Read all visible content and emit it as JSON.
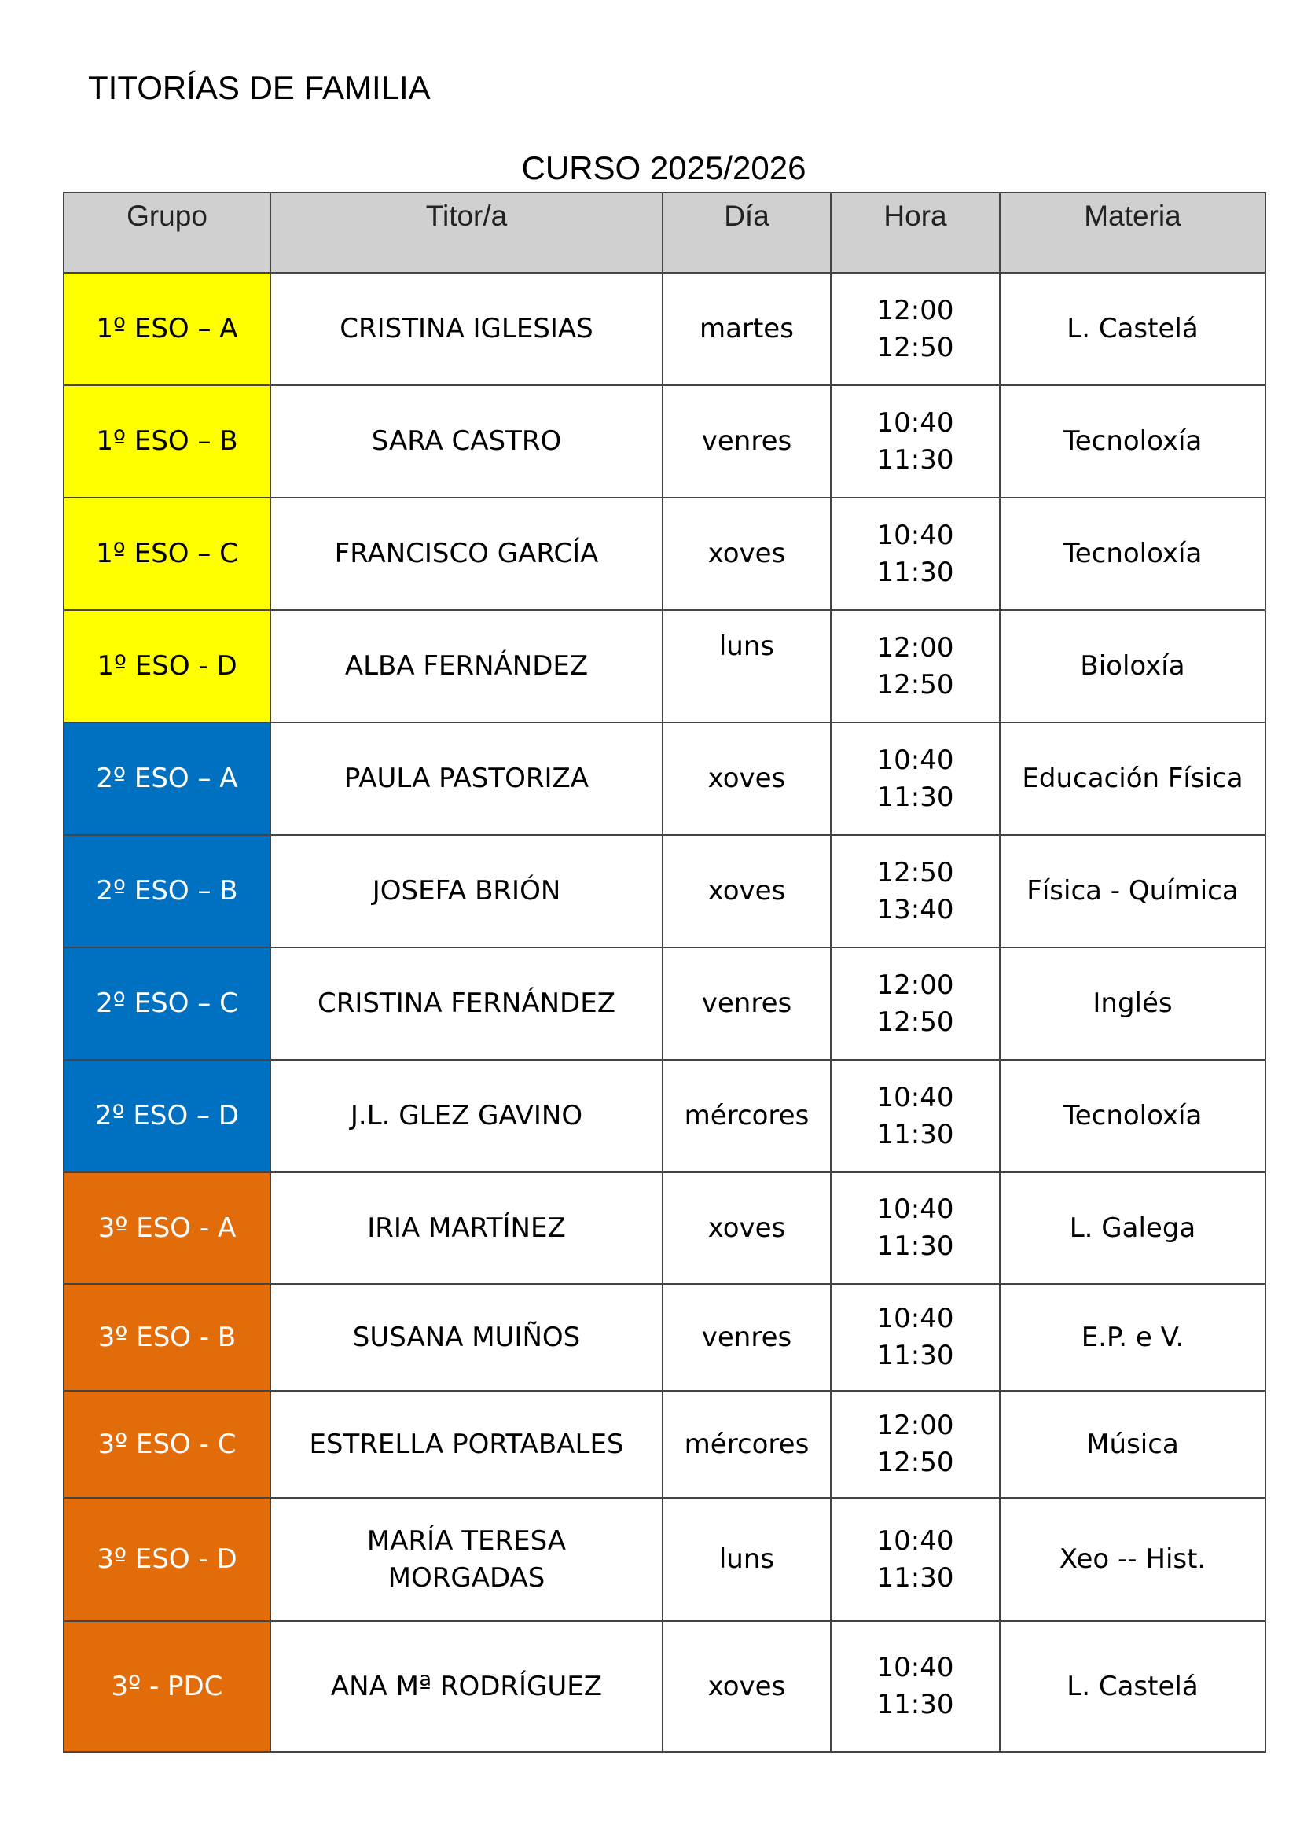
{
  "title": "TITORÍAS DE FAMILIA",
  "subtitle": "CURSO 2025/2026",
  "colors": {
    "header": "#d0d0d0",
    "primeiro": "#ffff00",
    "segundo": "#0070c0",
    "terceiro": "#e36c0a"
  },
  "headers": [
    "Grupo",
    "Titor/a",
    "Día",
    "Hora",
    "Materia"
  ],
  "rows": [
    {
      "grupo": "1º ESO – A",
      "titor": "CRISTINA IGLESIAS",
      "dia": "martes",
      "hora_inicio": "12:00",
      "hora_fin": "12:50",
      "materia": "L. Castelá"
    },
    {
      "grupo": "1º ESO – B",
      "titor": "SARA CASTRO",
      "dia": "venres",
      "hora_inicio": "10:40",
      "hora_fin": "11:30",
      "materia": "Tecnoloxía"
    },
    {
      "grupo": "1º ESO – C",
      "titor": "FRANCISCO GARCÍA",
      "dia": "xoves",
      "hora_inicio": "10:40",
      "hora_fin": "11:30",
      "materia": "Tecnoloxía"
    },
    {
      "grupo": "1º ESO - D",
      "titor": "ALBA FERNÁNDEZ",
      "dia": "luns",
      "hora_inicio": "12:00",
      "hora_fin": "12:50",
      "materia": "Bioloxía"
    },
    {
      "grupo": "2º ESO – A",
      "titor": "PAULA PASTORIZA",
      "dia": "xoves",
      "hora_inicio": "10:40",
      "hora_fin": "11:30",
      "materia": "Educación Física"
    },
    {
      "grupo": "2º ESO – B",
      "titor": "JOSEFA BRIÓN",
      "dia": "xoves",
      "hora_inicio": "12:50",
      "hora_fin": "13:40",
      "materia": "Física - Química"
    },
    {
      "grupo": "2º ESO – C",
      "titor": "CRISTINA FERNÁNDEZ",
      "dia": "venres",
      "hora_inicio": "12:00",
      "hora_fin": "12:50",
      "materia": "Inglés"
    },
    {
      "grupo": "2º ESO – D",
      "titor": "J.L. GLEZ GAVINO",
      "dia": "mércores",
      "hora_inicio": "10:40",
      "hora_fin": "11:30",
      "materia": "Tecnoloxía"
    },
    {
      "grupo": "3º ESO  - A",
      "titor": "IRIA MARTÍNEZ",
      "dia": "xoves",
      "hora_inicio": "10:40",
      "hora_fin": "11:30",
      "materia": "L. Galega"
    },
    {
      "grupo": "3º ESO  - B",
      "titor": "SUSANA MUIÑOS",
      "dia": "venres",
      "hora_inicio": "10:40",
      "hora_fin": "11:30",
      "materia": "E.P. e V."
    },
    {
      "grupo": "3º ESO  - C",
      "titor": "ESTRELLA PORTABALES",
      "dia": "mércores",
      "hora_inicio": "12:00",
      "hora_fin": "12:50",
      "materia": "Música"
    },
    {
      "grupo": "3º ESO - D",
      "titor": "MARÍA TERESA MORGADAS",
      "dia": "luns",
      "hora_inicio": "10:40",
      "hora_fin": "11:30",
      "materia": "Xeo -- Hist."
    },
    {
      "grupo": "3º - PDC",
      "titor": "ANA Mª RODRÍGUEZ",
      "dia": "xoves",
      "hora_inicio": "10:40",
      "hora_fin": "11:30",
      "materia": "L. Castelá"
    }
  ]
}
